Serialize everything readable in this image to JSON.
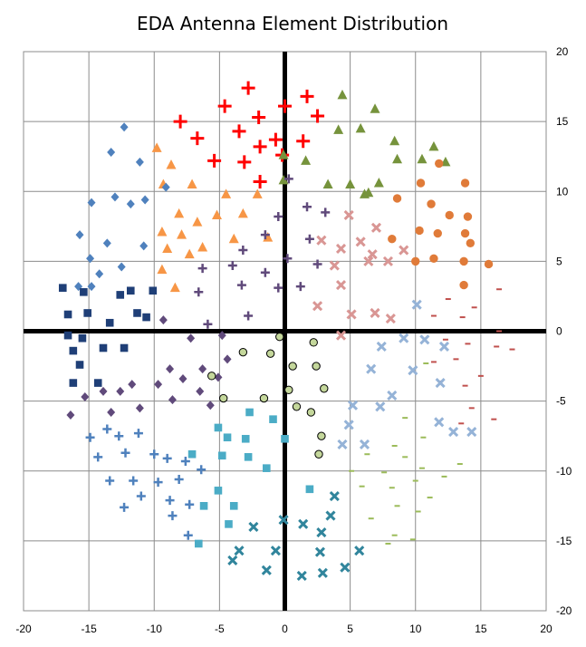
{
  "chart_data": {
    "type": "scatter",
    "title": "EDA Antenna Element Distribution",
    "xlabel": "",
    "ylabel": "",
    "xlim": [
      -20,
      20
    ],
    "ylim": [
      -20,
      20
    ],
    "xticks": [
      -20,
      -15,
      -10,
      -5,
      0,
      5,
      10,
      15,
      20
    ],
    "yticks": [
      20,
      15,
      10,
      5,
      0,
      -5,
      -10,
      -15,
      -20
    ],
    "grid": true,
    "legend": "none",
    "series": [
      {
        "marker": "plus",
        "color": "#ff0000",
        "points": [
          [
            -2.8,
            17.4
          ],
          [
            -4.6,
            16.1
          ],
          [
            -8,
            15
          ],
          [
            -2,
            15.3
          ],
          [
            0,
            16.1
          ],
          [
            1.7,
            16.8
          ],
          [
            2.5,
            15.4
          ],
          [
            -6.7,
            13.8
          ],
          [
            -3.5,
            14.3
          ],
          [
            -0.7,
            13.7
          ],
          [
            -1.9,
            13.2
          ],
          [
            -0.2,
            12.6
          ],
          [
            1.4,
            13.6
          ],
          [
            -5.4,
            12.2
          ],
          [
            -3.1,
            12.1
          ],
          [
            -1.9,
            10.7
          ]
        ]
      },
      {
        "marker": "triangle",
        "color": "#76933c",
        "points": [
          [
            4.4,
            16.9
          ],
          [
            6.9,
            15.9
          ],
          [
            4.1,
            14.4
          ],
          [
            5.8,
            14.5
          ],
          [
            8.4,
            13.6
          ],
          [
            11.4,
            13.2
          ],
          [
            -0.1,
            12.6
          ],
          [
            1.6,
            12.2
          ],
          [
            8.6,
            12.3
          ],
          [
            10.5,
            12.3
          ],
          [
            12.3,
            12.1
          ],
          [
            -0.1,
            10.8
          ],
          [
            3.3,
            10.5
          ],
          [
            5,
            10.5
          ],
          [
            7.2,
            10.6
          ],
          [
            6.1,
            9.8
          ],
          [
            6.4,
            9.9
          ]
        ]
      },
      {
        "marker": "circle",
        "color": "#e07b39",
        "points": [
          [
            11.8,
            12
          ],
          [
            10.4,
            10.6
          ],
          [
            13.8,
            10.6
          ],
          [
            8.6,
            9.5
          ],
          [
            11.2,
            9.1
          ],
          [
            12.6,
            8.3
          ],
          [
            14,
            8.2
          ],
          [
            10.3,
            7.2
          ],
          [
            11.7,
            7
          ],
          [
            13.8,
            7
          ],
          [
            8.2,
            6.6
          ],
          [
            14.2,
            6.3
          ],
          [
            10,
            5
          ],
          [
            11.4,
            5.2
          ],
          [
            13.7,
            5
          ],
          [
            15.6,
            4.8
          ],
          [
            13.7,
            3.3
          ]
        ]
      },
      {
        "marker": "triangle",
        "color": "#f79646",
        "points": [
          [
            -9.8,
            13.1
          ],
          [
            -8.7,
            11.9
          ],
          [
            -7.1,
            10.5
          ],
          [
            -9.3,
            10.5
          ],
          [
            -4.5,
            9.8
          ],
          [
            -2.1,
            9.8
          ],
          [
            -8.1,
            8.4
          ],
          [
            -3.2,
            8.4
          ],
          [
            -5.2,
            8.3
          ],
          [
            -6.7,
            7.8
          ],
          [
            -9.4,
            7.1
          ],
          [
            -7.9,
            6.9
          ],
          [
            -1.3,
            6.7
          ],
          [
            -3.9,
            6.6
          ],
          [
            -6.3,
            6
          ],
          [
            -9,
            5.9
          ],
          [
            -7.3,
            5.5
          ],
          [
            -9.4,
            4.4
          ],
          [
            -8.4,
            3.1
          ]
        ]
      },
      {
        "marker": "diamond",
        "color": "#4f81bd",
        "points": [
          [
            -12.3,
            14.6
          ],
          [
            -13.3,
            12.8
          ],
          [
            -11.1,
            12.1
          ],
          [
            -13,
            9.6
          ],
          [
            -10.7,
            9.4
          ],
          [
            -9.1,
            10.3
          ],
          [
            -14.8,
            9.2
          ],
          [
            -11.8,
            9.1
          ],
          [
            -15.7,
            6.9
          ],
          [
            -13.6,
            6.3
          ],
          [
            -10.8,
            6.1
          ],
          [
            -14.9,
            5.2
          ],
          [
            -12.5,
            4.6
          ],
          [
            -15.8,
            3.2
          ],
          [
            -14.8,
            3.2
          ],
          [
            -14.2,
            4.1
          ]
        ]
      },
      {
        "marker": "square",
        "color": "#1f3f77",
        "points": [
          [
            -17,
            3.1
          ],
          [
            -15.4,
            2.8
          ],
          [
            -16.6,
            1.2
          ],
          [
            -15.1,
            1.3
          ],
          [
            -11.8,
            2.9
          ],
          [
            -10.1,
            2.9
          ],
          [
            -12.6,
            2.6
          ],
          [
            -13.4,
            0.6
          ],
          [
            -11.3,
            1.3
          ],
          [
            -10.6,
            1
          ],
          [
            -16.6,
            -0.3
          ],
          [
            -16.2,
            -1.4
          ],
          [
            -15.5,
            -0.5
          ],
          [
            -13.9,
            -1.2
          ],
          [
            -12.3,
            -1.2
          ],
          [
            -15.7,
            -2.4
          ],
          [
            -16.2,
            -3.7
          ],
          [
            -14.3,
            -3.7
          ]
        ]
      },
      {
        "marker": "plus",
        "color": "#604a7b",
        "points": [
          [
            0.3,
            10.9
          ],
          [
            1.7,
            8.9
          ],
          [
            3.1,
            8.5
          ],
          [
            1.9,
            6.6
          ],
          [
            -0.5,
            8.2
          ],
          [
            -1.5,
            6.9
          ],
          [
            -3.2,
            5.8
          ],
          [
            2.5,
            4.8
          ],
          [
            0.2,
            5.2
          ],
          [
            -1.5,
            4.2
          ],
          [
            -4,
            4.7
          ],
          [
            -6.3,
            4.5
          ],
          [
            -3.3,
            3.3
          ],
          [
            -0.5,
            3.1
          ],
          [
            1.2,
            3.2
          ],
          [
            -6.6,
            2.8
          ],
          [
            -2.8,
            1.1
          ],
          [
            -5.9,
            0.5
          ]
        ]
      },
      {
        "marker": "x",
        "color": "#d99694",
        "points": [
          [
            4.9,
            8.3
          ],
          [
            7,
            7.4
          ],
          [
            2.8,
            6.5
          ],
          [
            5.8,
            6.4
          ],
          [
            4.3,
            5.9
          ],
          [
            6.7,
            5.5
          ],
          [
            9.1,
            5.8
          ],
          [
            6.4,
            5
          ],
          [
            7.9,
            5
          ],
          [
            3.8,
            4.7
          ],
          [
            4.3,
            3.3
          ],
          [
            2.5,
            1.8
          ],
          [
            5.1,
            1.2
          ],
          [
            6.9,
            1.3
          ],
          [
            8.1,
            0.9
          ],
          [
            4.3,
            -0.3
          ]
        ]
      },
      {
        "marker": "dash",
        "color": "#c0504d",
        "points": [
          [
            16.4,
            3
          ],
          [
            12.5,
            2.3
          ],
          [
            14.5,
            1.7
          ],
          [
            11.4,
            1.1
          ],
          [
            13.6,
            1
          ],
          [
            16.4,
            0
          ],
          [
            12.3,
            -0.6
          ],
          [
            14,
            -0.9
          ],
          [
            16.2,
            -1.1
          ],
          [
            17.4,
            -1.3
          ],
          [
            11.4,
            -2.2
          ],
          [
            13.1,
            -2
          ],
          [
            15,
            -3.2
          ],
          [
            11.9,
            -3.6
          ],
          [
            13.8,
            -3.9
          ],
          [
            14.3,
            -5.5
          ],
          [
            16,
            -6.3
          ],
          [
            13.5,
            -6.6
          ]
        ]
      },
      {
        "marker": "x",
        "color": "#95b3d7",
        "points": [
          [
            10.1,
            1.9
          ],
          [
            9.1,
            -0.5
          ],
          [
            10.7,
            -0.6
          ],
          [
            7.4,
            -1.1
          ],
          [
            12.2,
            -1.1
          ],
          [
            6.6,
            -2.7
          ],
          [
            9.8,
            -2.8
          ],
          [
            11.9,
            -3.7
          ],
          [
            8.2,
            -4.6
          ],
          [
            5.2,
            -5.3
          ],
          [
            7.3,
            -5.4
          ],
          [
            11.8,
            -6.5
          ],
          [
            4.9,
            -6.7
          ],
          [
            12.9,
            -7.2
          ],
          [
            14.3,
            -7.2
          ],
          [
            4.4,
            -8.1
          ],
          [
            6.1,
            -8.1
          ]
        ]
      },
      {
        "marker": "dash",
        "color": "#9bbb59",
        "points": [
          [
            10.8,
            -2.3
          ],
          [
            9.2,
            -6.2
          ],
          [
            10.6,
            -7.6
          ],
          [
            8.4,
            -8.2
          ],
          [
            6.3,
            -8.8
          ],
          [
            9.2,
            -9
          ],
          [
            10.5,
            -9.8
          ],
          [
            13.4,
            -9.5
          ],
          [
            5.1,
            -10
          ],
          [
            7.6,
            -10.1
          ],
          [
            12.2,
            -10.4
          ],
          [
            10,
            -10.7
          ],
          [
            5.9,
            -11.1
          ],
          [
            8.2,
            -11.2
          ],
          [
            11.1,
            -11.9
          ],
          [
            8.6,
            -12.5
          ],
          [
            10.2,
            -12.9
          ],
          [
            6.6,
            -13.4
          ],
          [
            8.4,
            -14.6
          ],
          [
            9.8,
            -14.9
          ],
          [
            7.9,
            -15.2
          ]
        ]
      },
      {
        "marker": "diamond",
        "color": "#604a7b",
        "points": [
          [
            -9.3,
            0.8
          ],
          [
            -7.2,
            -0.5
          ],
          [
            -4.8,
            -0.3
          ],
          [
            -8.8,
            -2.7
          ],
          [
            -6.3,
            -2.7
          ],
          [
            -4.4,
            -2
          ],
          [
            -11.7,
            -3.8
          ],
          [
            -9.7,
            -3.8
          ],
          [
            -7.8,
            -3.4
          ],
          [
            -13.9,
            -4.3
          ],
          [
            -12.6,
            -4.3
          ],
          [
            -15.3,
            -4.7
          ],
          [
            -5.1,
            -3.3
          ],
          [
            -6.5,
            -4.3
          ],
          [
            -8.6,
            -4.9
          ],
          [
            -5.7,
            -5.3
          ],
          [
            -16.4,
            -6
          ],
          [
            -13.3,
            -5.8
          ],
          [
            -11.1,
            -5.5
          ]
        ]
      },
      {
        "marker": "circle-hollow",
        "color": "#c4d79b",
        "points": [
          [
            -0.4,
            -0.4
          ],
          [
            2.2,
            -0.8
          ],
          [
            -3.2,
            -1.5
          ],
          [
            -1.1,
            -1.6
          ],
          [
            -5.6,
            -3.2
          ],
          [
            0.6,
            -2.5
          ],
          [
            2.4,
            -2.5
          ],
          [
            -4.7,
            -4.8
          ],
          [
            -1.6,
            -4.8
          ],
          [
            0.3,
            -4.2
          ],
          [
            3,
            -4.1
          ],
          [
            0.9,
            -5.4
          ],
          [
            2,
            -5.8
          ],
          [
            2.8,
            -7.5
          ],
          [
            2.6,
            -8.8
          ]
        ]
      },
      {
        "marker": "plus",
        "color": "#4f81bd",
        "points": [
          [
            -14.9,
            -7.6
          ],
          [
            -13.6,
            -7
          ],
          [
            -12.7,
            -7.5
          ],
          [
            -11.2,
            -7.3
          ],
          [
            -14.3,
            -9
          ],
          [
            -12.2,
            -8.7
          ],
          [
            -10,
            -8.8
          ],
          [
            -9,
            -9.1
          ],
          [
            -7.6,
            -9.3
          ],
          [
            -6.4,
            -9.9
          ],
          [
            -8.1,
            -10.6
          ],
          [
            -13.4,
            -10.7
          ],
          [
            -11.6,
            -10.7
          ],
          [
            -9.7,
            -10.8
          ],
          [
            -11,
            -11.8
          ],
          [
            -8.8,
            -12.1
          ],
          [
            -7.3,
            -12.4
          ],
          [
            -12.3,
            -12.6
          ],
          [
            -8.6,
            -13.2
          ],
          [
            -7.4,
            -14.6
          ]
        ]
      },
      {
        "marker": "square",
        "color": "#4bacc6",
        "points": [
          [
            -2.7,
            -5.8
          ],
          [
            -0.9,
            -6.3
          ],
          [
            -5.1,
            -6.9
          ],
          [
            -4.4,
            -7.6
          ],
          [
            -3,
            -7.7
          ],
          [
            0,
            -7.7
          ],
          [
            -7.1,
            -8.8
          ],
          [
            -4.8,
            -8.9
          ],
          [
            -2.8,
            -9
          ],
          [
            -1.4,
            -9.8
          ],
          [
            1.9,
            -11.3
          ],
          [
            -5.1,
            -11.4
          ],
          [
            -6.2,
            -12.5
          ],
          [
            -3.9,
            -12.5
          ],
          [
            -4.3,
            -13.8
          ],
          [
            -6.6,
            -15.2
          ]
        ]
      },
      {
        "marker": "x",
        "color": "#31859c",
        "points": [
          [
            3.8,
            -11.8
          ],
          [
            3.5,
            -13.2
          ],
          [
            -0.1,
            -13.5
          ],
          [
            1.4,
            -13.8
          ],
          [
            -2.4,
            -14
          ],
          [
            2.8,
            -14.4
          ],
          [
            -3.5,
            -15.7
          ],
          [
            -0.7,
            -15.7
          ],
          [
            2.7,
            -15.8
          ],
          [
            5.7,
            -15.7
          ],
          [
            -4,
            -16.4
          ],
          [
            -1.4,
            -17.1
          ],
          [
            1.3,
            -17.5
          ],
          [
            2.9,
            -17.3
          ],
          [
            4.6,
            -16.9
          ]
        ]
      }
    ]
  }
}
